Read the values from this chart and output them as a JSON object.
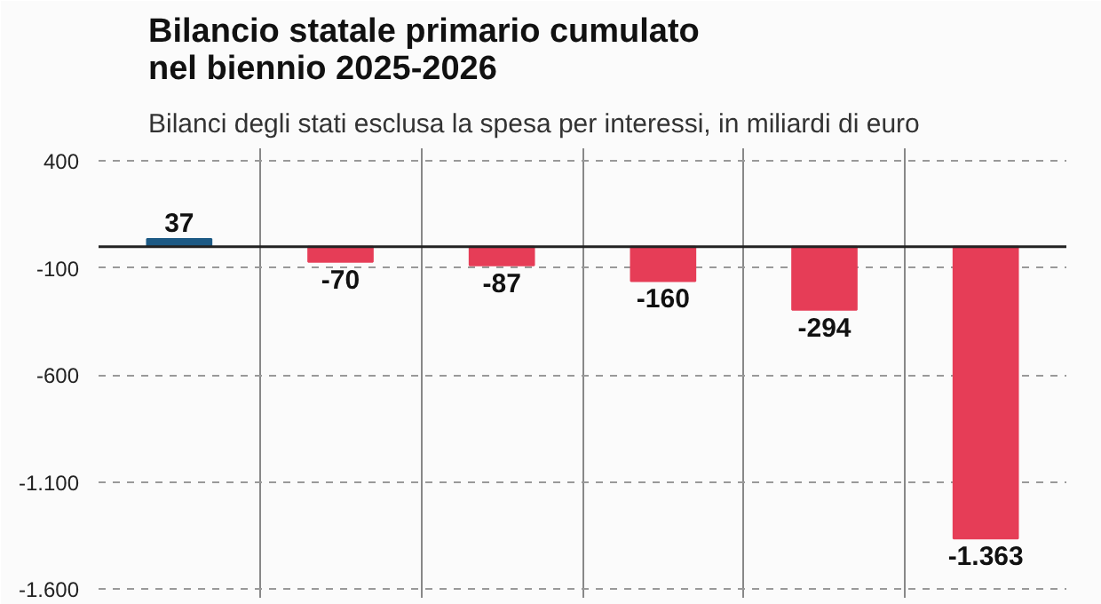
{
  "chart_data": {
    "type": "bar",
    "title": "Bilancio statale primario cumulato\nnel biennio 2025-2026",
    "subtitle": "Bilanci degli stati esclusa la spesa per interessi, in miliardi di euro",
    "categories": [
      null,
      null,
      null,
      null,
      null,
      null
    ],
    "values": [
      37,
      -70,
      -87,
      -160,
      -294,
      -1363
    ],
    "colors": [
      "#1d5a85",
      "#e63d57",
      "#e63d57",
      "#e63d57",
      "#e63d57",
      "#e63d57"
    ],
    "value_labels": [
      "37",
      "-70",
      "-87",
      "-160",
      "-294",
      "-1.363"
    ],
    "ylim": [
      -1640,
      460
    ],
    "yticks": [
      400,
      -100,
      -600,
      {
        "value": -1100,
        "label": "-1.100"
      },
      {
        "value": -1600,
        "label": "-1.600"
      }
    ],
    "grid": true,
    "tick_labels": "y"
  }
}
